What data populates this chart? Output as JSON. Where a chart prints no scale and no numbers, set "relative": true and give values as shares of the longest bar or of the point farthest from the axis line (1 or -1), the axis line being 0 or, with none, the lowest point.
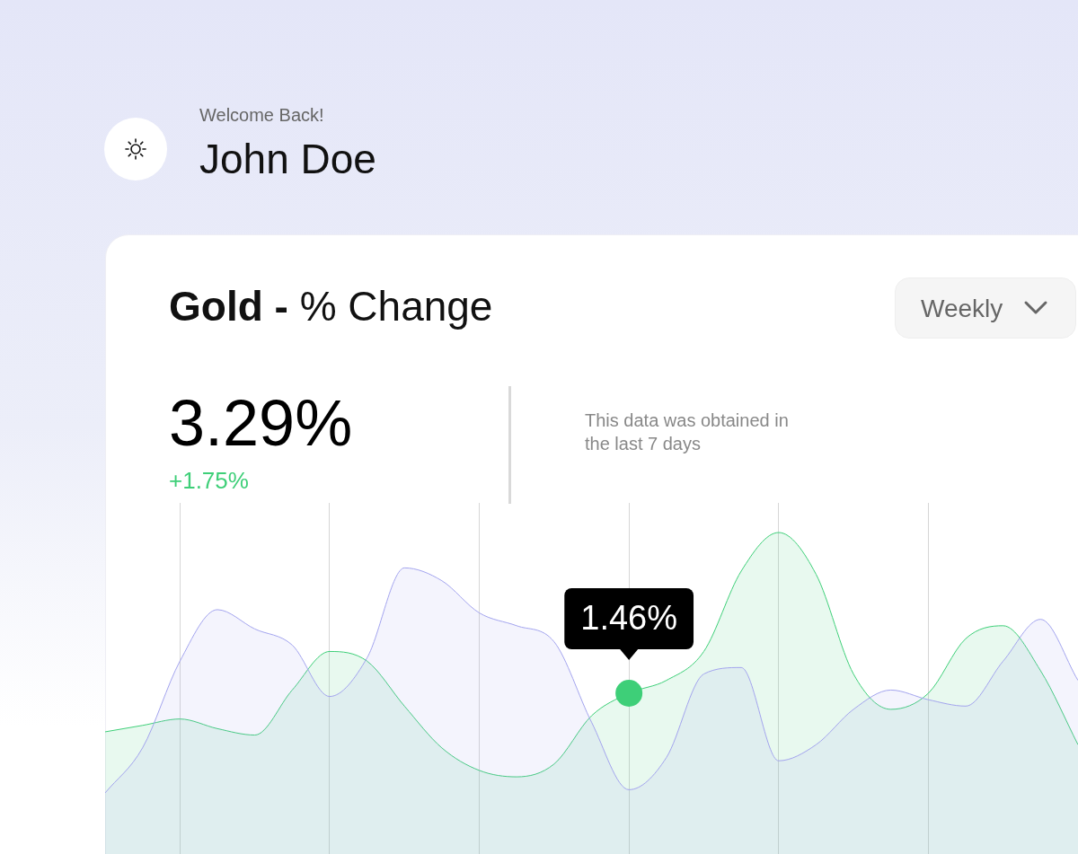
{
  "chart_data": {
    "type": "area",
    "title": "Gold - % Change",
    "relative": true,
    "grid": "x",
    "annotations": [
      "Welcome Back!",
      "John Doe",
      "3.29%",
      "+1.75%",
      "This data was obtained in the last 7 days",
      "Weekly",
      {
        "text": "1.46%",
        "y": 0.5
      }
    ],
    "categories": [
      null,
      null,
      null,
      null,
      null,
      null,
      null,
      null,
      null,
      null,
      null,
      null,
      null,
      null,
      null,
      null,
      null,
      null,
      null,
      null,
      null,
      null,
      null,
      null,
      null,
      null,
      null
    ],
    "series": [
      {
        "color": "#a3a4ee",
        "values": [
          0.19,
          0.33,
          0.6,
          0.76,
          0.7,
          0.65,
          0.49,
          0.61,
          0.89,
          0.85,
          0.75,
          0.71,
          0.66,
          0.41,
          0.2,
          0.3,
          0.56,
          0.58,
          0.29,
          0.34,
          0.45,
          0.51,
          0.48,
          0.46,
          0.6,
          0.73,
          0.54
        ]
      },
      {
        "color": "#3ecf78",
        "values": [
          0.38,
          0.4,
          0.42,
          0.39,
          0.37,
          0.51,
          0.63,
          0.6,
          0.46,
          0.33,
          0.26,
          0.24,
          0.28,
          0.43,
          0.5,
          0.54,
          0.63,
          0.88,
          1,
          0.87,
          0.56,
          0.45,
          0.5,
          0.67,
          0.71,
          0.57,
          0.34
        ]
      }
    ]
  }
}
